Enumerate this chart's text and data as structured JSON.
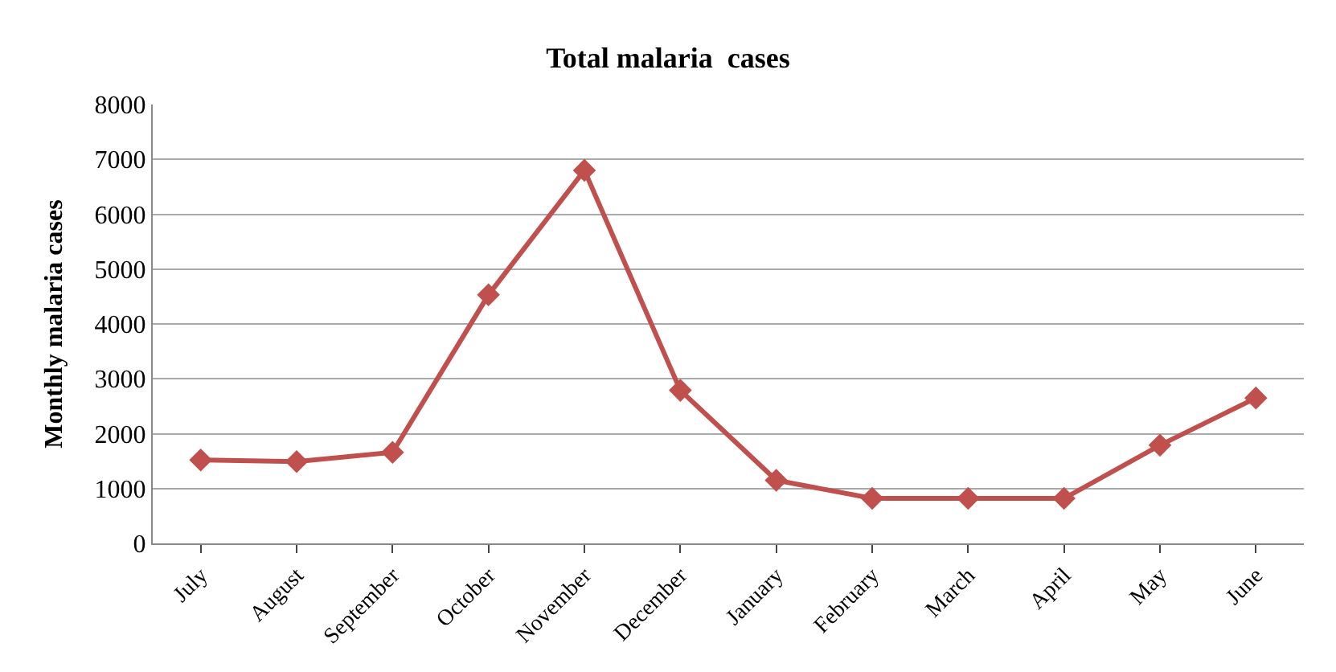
{
  "chart_data": {
    "type": "line",
    "title": "Total malaria  cases",
    "ylabel": "Monthly malaria cases",
    "categories": [
      "July",
      "August",
      "September",
      "October",
      "November",
      "December",
      "January",
      "February",
      "March",
      "April",
      "May",
      "June"
    ],
    "series": [
      {
        "color": "#c0504d",
        "values": [
          1520,
          1490,
          1660,
          4530,
          6800,
          2790,
          1150,
          820,
          820,
          820,
          1790,
          2650
        ]
      }
    ],
    "ylim": [
      0,
      8000
    ],
    "yticks": [
      0,
      1000,
      2000,
      3000,
      4000,
      5000,
      6000,
      7000,
      8000
    ],
    "grid": "y",
    "marker": "diamond",
    "line_style": "solid",
    "legend": false
  }
}
